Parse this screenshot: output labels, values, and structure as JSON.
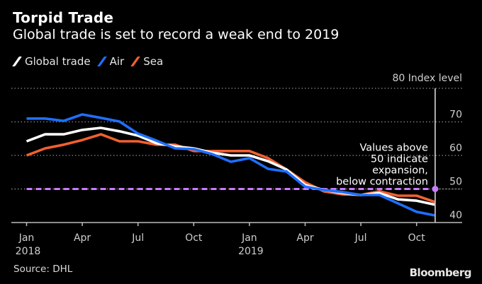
{
  "header": {
    "title": "Torpid Trade",
    "subtitle": "Global trade is set to record a weak end to 2019"
  },
  "footer": {
    "source": "Source: DHL",
    "brand": "Bloomberg"
  },
  "chart_data": {
    "type": "line",
    "title": "Torpid Trade",
    "subtitle": "Global trade is set to record a weak end to 2019",
    "xlabel": "",
    "ylabel": "Index level",
    "ylim": [
      40,
      80
    ],
    "yticks": [
      40,
      50,
      60,
      70,
      80
    ],
    "y_unit_label": "Index level",
    "grid": true,
    "legend_position": "top-left",
    "x": [
      "2018-01",
      "2018-02",
      "2018-03",
      "2018-04",
      "2018-05",
      "2018-06",
      "2018-07",
      "2018-08",
      "2018-09",
      "2018-10",
      "2018-11",
      "2018-12",
      "2019-01",
      "2019-02",
      "2019-03",
      "2019-04",
      "2019-05",
      "2019-06",
      "2019-07",
      "2019-08",
      "2019-09",
      "2019-10",
      "2019-11"
    ],
    "xticks": [
      {
        "x": "2018-01",
        "label": "Jan",
        "sublabel": "2018"
      },
      {
        "x": "2018-04",
        "label": "Apr",
        "sublabel": ""
      },
      {
        "x": "2018-07",
        "label": "Jul",
        "sublabel": ""
      },
      {
        "x": "2018-10",
        "label": "Oct",
        "sublabel": ""
      },
      {
        "x": "2019-01",
        "label": "Jan",
        "sublabel": "2019"
      },
      {
        "x": "2019-04",
        "label": "Apr",
        "sublabel": ""
      },
      {
        "x": "2019-07",
        "label": "Jul",
        "sublabel": ""
      },
      {
        "x": "2019-10",
        "label": "Oct",
        "sublabel": ""
      }
    ],
    "series": [
      {
        "name": "Global trade",
        "color": "#ffffff",
        "values": [
          64.2,
          66.3,
          66.3,
          67.6,
          68.2,
          67.2,
          65.9,
          63.6,
          62.7,
          62.1,
          60.8,
          60.0,
          60.0,
          58.3,
          55.8,
          51.2,
          49.7,
          48.8,
          48.2,
          48.8,
          46.9,
          46.5,
          45.3
        ]
      },
      {
        "name": "Air",
        "color": "#1f6fff",
        "values": [
          71.0,
          71.0,
          70.3,
          72.2,
          71.2,
          70.1,
          66.5,
          64.4,
          62.1,
          61.9,
          60.4,
          58.1,
          59.2,
          56.0,
          55.2,
          50.7,
          49.7,
          49.1,
          48.2,
          48.2,
          45.7,
          43.2,
          42.1
        ]
      },
      {
        "name": "Sea",
        "color": "#f2602f",
        "values": [
          60.0,
          62.1,
          63.2,
          64.6,
          66.3,
          64.2,
          64.2,
          63.2,
          63.2,
          61.3,
          61.3,
          61.3,
          61.3,
          59.2,
          55.8,
          52.0,
          49.3,
          48.4,
          48.2,
          49.3,
          48.0,
          48.0,
          46.1
        ]
      }
    ],
    "reference_line": {
      "value": 50,
      "color": "#c77dff",
      "style": "dashed"
    },
    "annotation": {
      "lines": [
        "Values above",
        "50 indicate",
        "expansion,",
        "below contraction"
      ],
      "anchor_x": "2019-11"
    },
    "vertical_marker": {
      "x": "2019-11",
      "color": "#bfbfbf"
    }
  }
}
